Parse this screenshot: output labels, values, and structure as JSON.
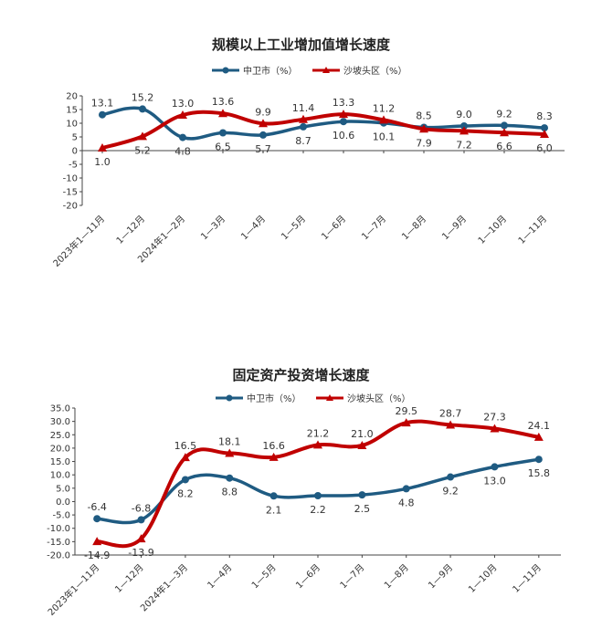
{
  "chart_data": [
    {
      "type": "line",
      "title": "规模以上工业增加值增长速度",
      "categories": [
        "2023年1—11月",
        "1—12月",
        "2024年1—2月",
        "1—3月",
        "1—4月",
        "1—5月",
        "1—6月",
        "1—7月",
        "1—8月",
        "1—9月",
        "1—10月",
        "1—11月"
      ],
      "ylim": [
        -20,
        20
      ],
      "yticks": [
        "20",
        "15",
        "10",
        "5",
        "0",
        "-5",
        "-10",
        "-15",
        "-20"
      ],
      "ytick_values": [
        20,
        15,
        10,
        5,
        0,
        -5,
        -10,
        -15,
        -20
      ],
      "legend_position": "top-center",
      "grid": false,
      "series": [
        {
          "name": "中卫市（%）",
          "color": "#1f5b82",
          "marker": "circle",
          "values": [
            13.1,
            15.2,
            4.8,
            6.5,
            5.7,
            8.7,
            10.6,
            10.1,
            8.5,
            9.0,
            9.2,
            8.3
          ],
          "labels": [
            "13.1",
            "15.2",
            "4.8",
            "6.5",
            "5.7",
            "8.7",
            "10.6",
            "10.1",
            "8.5",
            "9.0",
            "9.2",
            "8.3"
          ]
        },
        {
          "name": "沙坡头区（%）",
          "color": "#c00000",
          "marker": "triangle",
          "values": [
            1.0,
            5.2,
            13.0,
            13.6,
            9.9,
            11.4,
            13.3,
            11.2,
            7.9,
            7.2,
            6.6,
            6.0
          ],
          "labels": [
            "1.0",
            "5.2",
            "13.0",
            "13.6",
            "9.9",
            "11.4",
            "13.3",
            "11.2",
            "7.9",
            "7.2",
            "6.6",
            "6.0"
          ]
        }
      ]
    },
    {
      "type": "line",
      "title": "固定资产投资增长速度",
      "categories": [
        "2023年1—11月",
        "1—12月",
        "2024年1—3月",
        "1—4月",
        "1—5月",
        "1—6月",
        "1—7月",
        "1—8月",
        "1—9月",
        "1—10月",
        "1—11月"
      ],
      "ylim": [
        -20,
        35
      ],
      "yticks": [
        "35.0",
        "30.0",
        "25.0",
        "20.0",
        "15.0",
        "10.0",
        "5.0",
        "0.0",
        "-5.0",
        "-10.0",
        "-15.0",
        "-20.0"
      ],
      "ytick_values": [
        35,
        30,
        25,
        20,
        15,
        10,
        5,
        0,
        -5,
        -10,
        -15,
        -20
      ],
      "legend_position": "top-center",
      "grid": false,
      "series": [
        {
          "name": "中卫市（%）",
          "color": "#1f5b82",
          "marker": "circle",
          "values": [
            -6.4,
            -6.8,
            8.2,
            8.8,
            2.1,
            2.2,
            2.5,
            4.8,
            9.2,
            13.0,
            15.8
          ],
          "labels": [
            "-6.4",
            "-6.8",
            "8.2",
            "8.8",
            "2.1",
            "2.2",
            "2.5",
            "4.8",
            "9.2",
            "13.0",
            "15.8"
          ]
        },
        {
          "name": "沙坡头区（%）",
          "color": "#c00000",
          "marker": "triangle",
          "values": [
            -14.9,
            -13.9,
            16.5,
            18.1,
            16.6,
            21.2,
            21.0,
            29.5,
            28.7,
            27.3,
            24.1
          ],
          "labels": [
            "-14.9",
            "-13.9",
            "16.5",
            "18.1",
            "16.6",
            "21.2",
            "21.0",
            "29.5",
            "28.7",
            "27.3",
            "24.1"
          ]
        }
      ]
    }
  ]
}
